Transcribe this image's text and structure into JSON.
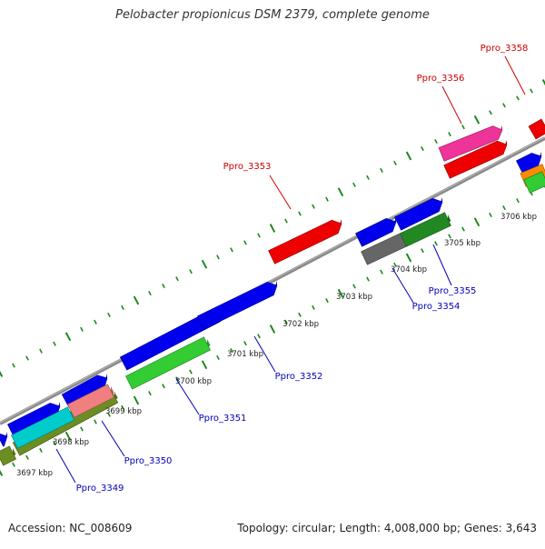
{
  "title": "Pelobacter propionicus DSM 2379, complete genome",
  "footer": {
    "accession": "Accession: NC_008609",
    "summary": "Topology: circular; Length: 4,008,000 bp; Genes: 3,643"
  },
  "ticks": [
    {
      "label": "3697 kbp"
    },
    {
      "label": "3698 kbp"
    },
    {
      "label": "3699 kbp"
    },
    {
      "label": "3700 kbp"
    },
    {
      "label": "3701 kbp"
    },
    {
      "label": "3702 kbp"
    },
    {
      "label": "3703 kbp"
    },
    {
      "label": "3704 kbp"
    },
    {
      "label": "3705 kbp"
    },
    {
      "label": "3706 kbp"
    }
  ],
  "gene_labels": [
    {
      "name": "Ppro_3349",
      "color": "#0000bb"
    },
    {
      "name": "Ppro_3350",
      "color": "#0000bb"
    },
    {
      "name": "Ppro_3351",
      "color": "#0000bb"
    },
    {
      "name": "Ppro_3352",
      "color": "#0000bb"
    },
    {
      "name": "Ppro_3353",
      "color": "#cc0000"
    },
    {
      "name": "Ppro_3354",
      "color": "#0000bb"
    },
    {
      "name": "Ppro_3355",
      "color": "#0000bb"
    },
    {
      "name": "Ppro_3356",
      "color": "#cc0000"
    },
    {
      "name": "Ppro_3358",
      "color": "#cc0000"
    }
  ],
  "colors": {
    "backbone": "#8a8a8a",
    "dots": "#1a8a1a",
    "blue": "#0000ee",
    "red": "#ee0000",
    "green": "#33cc33",
    "dark_green": "#228822",
    "olive": "#6b8e23",
    "pink": "#ee3399",
    "salmon": "#f08080",
    "cyan": "#00cccc",
    "gray": "#666666",
    "orange": "#ff8c00"
  }
}
